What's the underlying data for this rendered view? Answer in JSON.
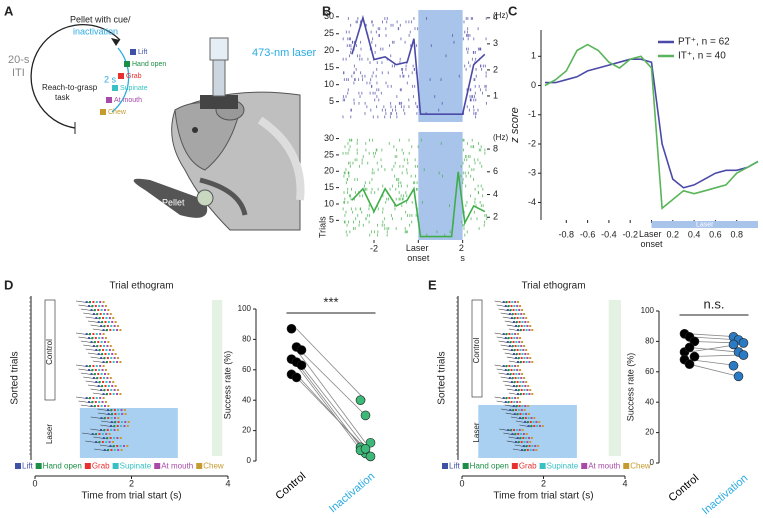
{
  "panel_labels": [
    "A",
    "B",
    "C",
    "D",
    "E"
  ],
  "diagram": {
    "cue": "Pellet with cue/",
    "inactivation": "inactivation",
    "iti_1": "20-s",
    "iti_2": "ITI",
    "interval": "2 s",
    "task_1": "Reach-to-grasp",
    "task_2": "task",
    "laser": "473-nm laser",
    "pellet": "Pellet",
    "events": [
      {
        "name": "Lift",
        "color": "#3f51a6"
      },
      {
        "name": "Hand open",
        "color": "#1b8f45"
      },
      {
        "name": "Grab",
        "color": "#e8312f"
      },
      {
        "name": "Supinate",
        "color": "#37c1c4"
      },
      {
        "name": "At mouth",
        "color": "#a94aa8"
      },
      {
        "name": "Chew",
        "color": "#c79a2e"
      }
    ]
  },
  "chart_data": [
    {
      "type": "line",
      "raster": true,
      "xlim": [
        -3.4,
        3.1
      ],
      "ylim": [
        -1,
        32
      ],
      "yticks": [
        5,
        10,
        15,
        20,
        25,
        30
      ],
      "y2lim": [
        0,
        4.3
      ],
      "y2ticks": [
        1,
        2,
        3,
        4
      ],
      "y2label": "(Hz)",
      "laser_window": [
        0,
        2
      ],
      "x": [
        -3,
        -2.5,
        -2,
        -1.5,
        -1,
        -0.5,
        -0.2,
        0.1,
        0.5,
        1,
        1.5,
        2,
        2.5,
        3
      ],
      "series": [
        {
          "name": "PT⁺",
          "color": "#4b4aa8",
          "axis": "y2",
          "values": [
            2.6,
            4.0,
            2.4,
            2.5,
            2.2,
            2.3,
            3.2,
            0.3,
            0.3,
            0.3,
            0.3,
            0.3,
            2.2,
            2.6
          ]
        }
      ]
    },
    {
      "type": "line",
      "raster": true,
      "xlim": [
        -3.4,
        3.1
      ],
      "ylim": [
        -1,
        32
      ],
      "yticks": [
        5,
        10,
        15,
        20,
        25,
        30
      ],
      "y2lim": [
        0,
        9.5
      ],
      "y2ticks": [
        2,
        4,
        6,
        8
      ],
      "y2label": "(Hz)",
      "ylabel": "Trials",
      "laser_window": [
        0,
        2
      ],
      "xticks": [
        -2,
        {
          "value": 0,
          "label": "Laser onset"
        },
        {
          "value": 2,
          "label": "2 s"
        }
      ],
      "x": [
        -3,
        -2.5,
        -2,
        -1.5,
        -1,
        -0.5,
        -0.2,
        0.1,
        0.5,
        1,
        1.5,
        1.8,
        2.1,
        2.5,
        3
      ],
      "series": [
        {
          "name": "IT⁺",
          "color": "#3fae49",
          "axis": "y2",
          "values": [
            3.5,
            4.5,
            2.5,
            4.5,
            3,
            3.5,
            4.5,
            0.3,
            0.3,
            0.3,
            0.3,
            6,
            1.5,
            3,
            2.5
          ]
        }
      ]
    },
    {
      "type": "line",
      "axis_line": true,
      "legend": "top-right",
      "xlim": [
        -1,
        1
      ],
      "ylim": [
        -4.6,
        1.9
      ],
      "yticks": [
        -4,
        -3,
        -2,
        -1,
        0,
        1
      ],
      "ylabel": "z score",
      "annotation": "Laser",
      "laser_window": [
        0,
        1
      ],
      "xticks": [
        -0.8,
        -0.6,
        -0.4,
        -0.2,
        {
          "value": 0,
          "label": "Laser onset"
        },
        0.2,
        0.4,
        0.6,
        0.8
      ],
      "x": [
        -1,
        -0.9,
        -0.8,
        -0.7,
        -0.6,
        -0.5,
        -0.4,
        -0.3,
        -0.2,
        -0.1,
        0,
        0.1,
        0.2,
        0.3,
        0.4,
        0.5,
        0.6,
        0.7,
        0.8,
        0.9,
        1
      ],
      "series": [
        {
          "name": "PT⁺, n = 62",
          "color": "#4b4aa8",
          "values": [
            0.1,
            0.1,
            0.2,
            0.3,
            0.5,
            0.6,
            0.7,
            0.8,
            0.9,
            0.9,
            0.8,
            -2.0,
            -3.2,
            -3.5,
            -3.4,
            -3.2,
            -3.0,
            -2.9,
            -2.9,
            -2.8,
            -2.6
          ]
        },
        {
          "name": "IT⁺, n = 40",
          "color": "#5ab55a",
          "values": [
            0,
            0.2,
            0.5,
            1.2,
            1.4,
            1.2,
            0.8,
            0.6,
            0.9,
            1.0,
            0.6,
            -4.2,
            -3.9,
            -3.6,
            -3.7,
            -3.6,
            -3.5,
            -3.4,
            -3.0,
            -2.8,
            -2.6
          ]
        }
      ]
    },
    {
      "type": "paired",
      "ylim": [
        0,
        100
      ],
      "yticks": [
        0,
        20,
        40,
        60,
        80,
        100
      ],
      "ylabel": "Success rate (%)",
      "annotation": "***",
      "categories": [
        "Control",
        "Inactivation"
      ],
      "category_colors": [
        "#000000",
        "#29abe2"
      ],
      "colors": [
        "#000000",
        "#3cb878"
      ],
      "values": [
        [
          87,
          75,
          73,
          67,
          65,
          63,
          57,
          55
        ],
        [
          40,
          30,
          12,
          9,
          5,
          3,
          7,
          8
        ]
      ]
    },
    {
      "type": "paired",
      "ylim": [
        0,
        100
      ],
      "yticks": [
        0,
        20,
        40,
        60,
        80,
        100
      ],
      "ylabel": "Success rate (%)",
      "annotation": "n.s.",
      "categories": [
        "Control",
        "Inactivation"
      ],
      "category_colors": [
        "#000000",
        "#29abe2"
      ],
      "colors": [
        "#000000",
        "#2a7bc4"
      ],
      "values": [
        [
          85,
          83,
          80,
          73,
          76,
          70,
          68,
          65
        ],
        [
          83,
          81,
          79,
          78,
          73,
          71,
          64,
          57
        ]
      ]
    }
  ],
  "ethograms": [
    {
      "title": "Trial ethogram",
      "xlabel": "Time from trial start (s)",
      "ylabel": "Sorted trials",
      "xticks": [
        0,
        2,
        4
      ],
      "groups": [
        "Control",
        "Laser"
      ],
      "legend": [
        "Lift",
        "Hand open",
        "Grab",
        "Supinate",
        "At mouth",
        "Chew"
      ]
    },
    {
      "title": "Trial ethogram",
      "xlabel": "Time from trial start (s)",
      "ylabel": "Sorted trials",
      "xticks": [
        0,
        2,
        4
      ],
      "groups": [
        "Control",
        "Laser"
      ],
      "legend": [
        "Lift",
        "Hand open",
        "Grab",
        "Supinate",
        "At mouth",
        "Chew"
      ]
    }
  ]
}
